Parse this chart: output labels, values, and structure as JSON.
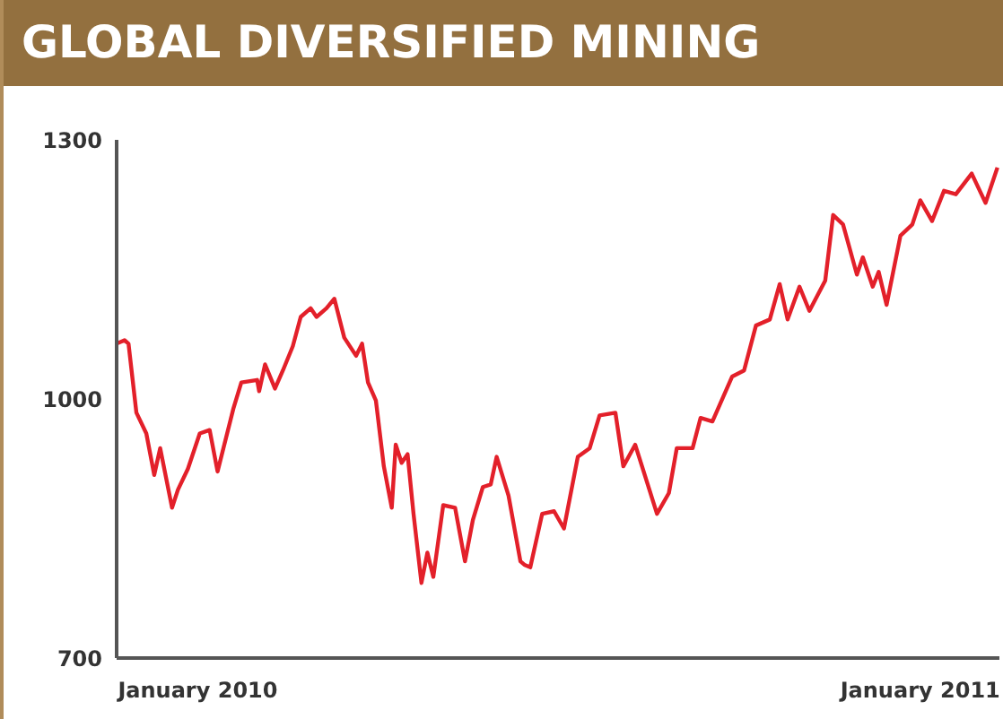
{
  "chart_data": {
    "type": "line",
    "title": "GLOBAL DIVERSIFIED MINING",
    "x": [
      "2009-11-21",
      "2009-11-25",
      "2009-11-27",
      "2009-12-01",
      "2009-12-06",
      "2009-12-10",
      "2009-12-13",
      "2009-12-19",
      "2009-12-22",
      "2009-12-27",
      "2010-01-02",
      "2010-01-07",
      "2010-01-11",
      "2010-01-19",
      "2010-01-23",
      "2010-01-31",
      "2010-02-01",
      "2010-02-04",
      "2010-02-09",
      "2010-02-13",
      "2010-02-18",
      "2010-02-22",
      "2010-02-27",
      "2010-03-02",
      "2010-03-07",
      "2010-03-11",
      "2010-03-16",
      "2010-03-22",
      "2010-03-25",
      "2010-03-28",
      "2010-04-01",
      "2010-04-05",
      "2010-04-09",
      "2010-04-11",
      "2010-04-14",
      "2010-04-17",
      "2010-04-20",
      "2010-04-24",
      "2010-04-27",
      "2010-04-30",
      "2010-05-05",
      "2010-05-11",
      "2010-05-16",
      "2010-05-20",
      "2010-05-25",
      "2010-05-29",
      "2010-06-01",
      "2010-06-07",
      "2010-06-13",
      "2010-06-15",
      "2010-06-18",
      "2010-06-24",
      "2010-06-30",
      "2010-07-05",
      "2010-07-12",
      "2010-07-18",
      "2010-07-23",
      "2010-07-31",
      "2010-08-04",
      "2010-08-10",
      "2010-08-21",
      "2010-08-27",
      "2010-08-31",
      "2010-09-08",
      "2010-09-12",
      "2010-09-18",
      "2010-09-28",
      "2010-10-04",
      "2010-10-10",
      "2010-10-17",
      "2010-10-22",
      "2010-10-26",
      "2010-11-01",
      "2010-11-06",
      "2010-11-14",
      "2010-11-18",
      "2010-11-23",
      "2010-11-30",
      "2010-12-03",
      "2010-12-08",
      "2010-12-11",
      "2010-12-15",
      "2010-12-22",
      "2010-12-28",
      "2011-01-01",
      "2011-01-07",
      "2011-01-13",
      "2011-01-19",
      "2011-01-27",
      "2011-02-03",
      "2011-02-09"
    ],
    "series": [
      {
        "color": "#e3202a",
        "values": [
          1064,
          1068,
          1064,
          984,
          960,
          912,
          943,
          874,
          895,
          919,
          960,
          964,
          916,
          989,
          1019,
          1022,
          1009,
          1040,
          1012,
          1033,
          1061,
          1095,
          1105,
          1095,
          1105,
          1116,
          1071,
          1050,
          1064,
          1019,
          998,
          922,
          874,
          947,
          926,
          936,
          867,
          787,
          822,
          794,
          877,
          874,
          812,
          860,
          898,
          901,
          933,
          888,
          812,
          808,
          805,
          867,
          870,
          850,
          933,
          943,
          981,
          984,
          922,
          947,
          867,
          891,
          943,
          943,
          978,
          974,
          1026,
          1033,
          1085,
          1092,
          1133,
          1092,
          1130,
          1102,
          1137,
          1213,
          1202,
          1144,
          1164,
          1130,
          1147,
          1109,
          1189,
          1202,
          1230,
          1206,
          1241,
          1237,
          1261,
          1227,
          1268
        ]
      }
    ],
    "xlim": [
      "2009-11-21",
      "2011-02-10"
    ],
    "xticks": [
      {
        "value": "2010-01-01",
        "label": "January 2010"
      },
      {
        "value": "2011-01-01",
        "label": "January 2011"
      }
    ],
    "ylim": [
      700,
      1300
    ],
    "yticks": [
      700,
      1000,
      1300
    ],
    "grid": false,
    "legend": false,
    "marker": "none",
    "line_style": "solid"
  }
}
